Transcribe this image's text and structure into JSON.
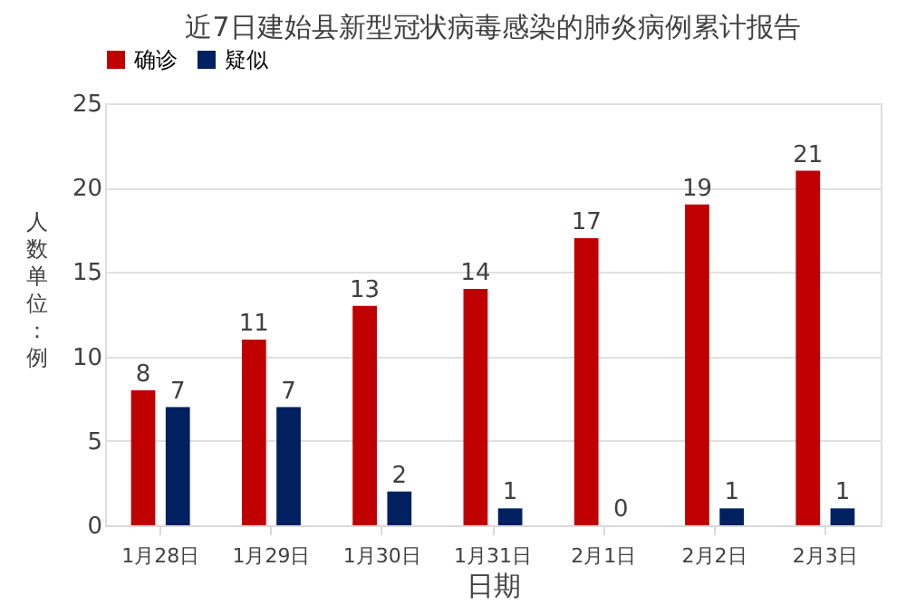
{
  "chart_data": {
    "type": "bar",
    "title": "近7日建始县新型冠状病毒感染的肺炎病例累计报告",
    "xlabel": "日期",
    "ylabel": "人数单位：例",
    "categories": [
      "1月28日",
      "1月29日",
      "1月30日",
      "1月31日",
      "2月1日",
      "2月2日",
      "2月3日"
    ],
    "series": [
      {
        "name": "确诊",
        "color": "#c00000",
        "values": [
          8,
          11,
          13,
          14,
          17,
          19,
          21
        ]
      },
      {
        "name": "疑似",
        "color": "#002060",
        "values": [
          7,
          7,
          2,
          1,
          0,
          1,
          1
        ]
      }
    ],
    "ylim": [
      0,
      25
    ],
    "yticks": [
      0,
      5,
      10,
      15,
      20,
      25
    ],
    "grid": "y",
    "legend": "top",
    "data_labels": true
  }
}
